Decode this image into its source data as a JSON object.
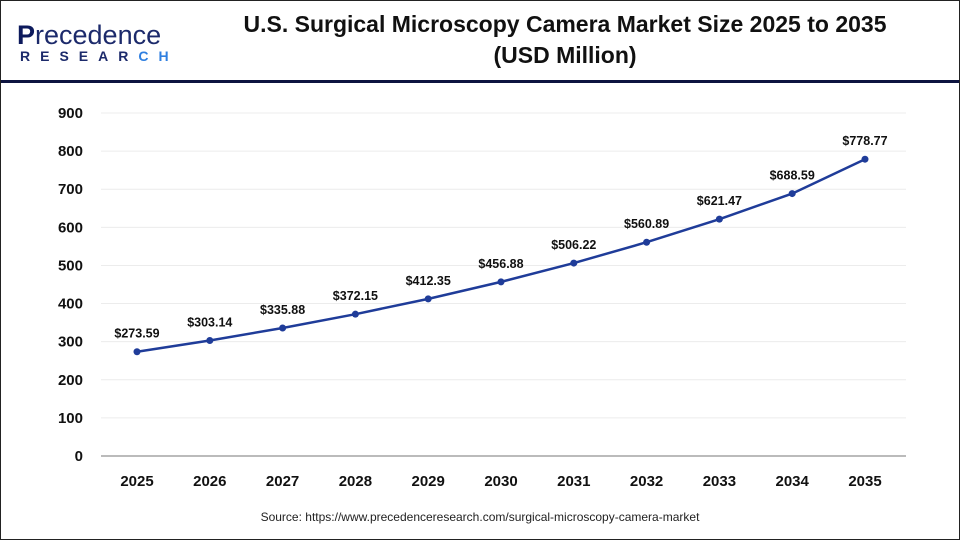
{
  "header": {
    "logo_text": "Precedence",
    "logo_subtext": "RESEARCH",
    "title_line1": "U.S. Surgical Microscopy Camera Market Size 2025 to 2035",
    "title_line2": "(USD Million)"
  },
  "chart_data": {
    "type": "line",
    "title": "U.S. Surgical Microscopy Camera Market Size 2025 to 2035 (USD Million)",
    "categories": [
      "2025",
      "2026",
      "2027",
      "2028",
      "2029",
      "2030",
      "2031",
      "2032",
      "2033",
      "2034",
      "2035"
    ],
    "values": [
      273.59,
      303.14,
      335.88,
      372.15,
      412.35,
      456.88,
      506.22,
      560.89,
      621.47,
      688.59,
      778.77
    ],
    "data_labels": [
      "$273.59",
      "$303.14",
      "$335.88",
      "$372.15",
      "$412.35",
      "$456.88",
      "$506.22",
      "$560.89",
      "$621.47",
      "$688.59",
      "$778.77"
    ],
    "ylim": [
      0,
      900
    ],
    "yticks": [
      "0",
      "100",
      "200",
      "300",
      "400",
      "500",
      "600",
      "700",
      "800",
      "900"
    ],
    "grid": true,
    "line_color": "#1f3c99",
    "xlabel": "",
    "ylabel": ""
  },
  "footer": {
    "source": "Source: https://www.precedenceresearch.com/surgical-microscopy-camera-market"
  }
}
